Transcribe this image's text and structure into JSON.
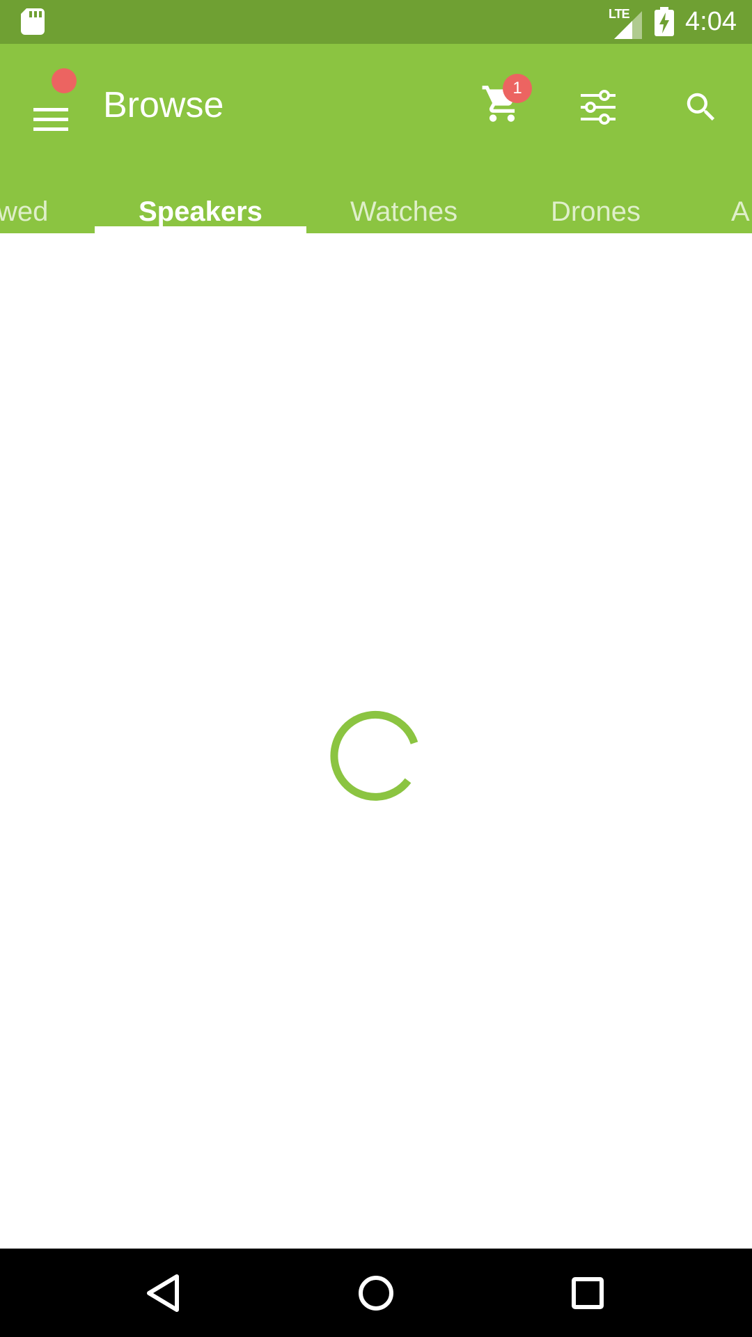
{
  "status_bar": {
    "time": "4:04",
    "network": "LTE",
    "icons": [
      "sd-card-icon",
      "signal-icon",
      "battery-charging-icon"
    ]
  },
  "app_bar": {
    "title": "Browse",
    "cart_count": "1",
    "icons": [
      "menu-icon",
      "cart-icon",
      "filter-icon",
      "search-icon"
    ]
  },
  "tabs": {
    "items": [
      {
        "label": "wed"
      },
      {
        "label": "Speakers"
      },
      {
        "label": "Watches"
      },
      {
        "label": "Drones"
      },
      {
        "label": "A"
      }
    ],
    "active": "Speakers"
  },
  "nav_bar": {
    "icons": [
      "back-icon",
      "home-icon",
      "recents-icon"
    ]
  },
  "colors": {
    "status_bar": "#6fa033",
    "app_bar": "#8bc441",
    "badge": "#ec6461",
    "spinner": "#8bc441",
    "nav_bar": "#000000"
  }
}
